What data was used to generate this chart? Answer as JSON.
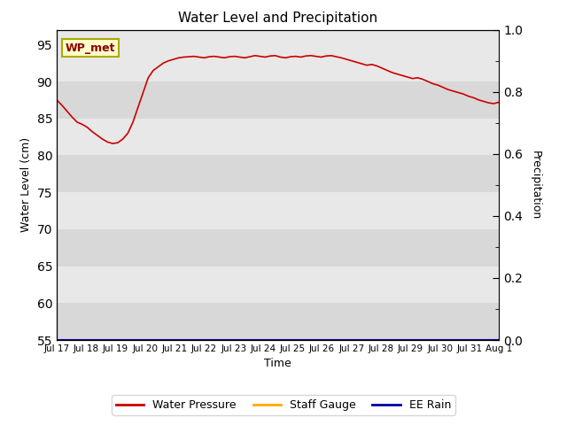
{
  "title": "Water Level and Precipitation",
  "xlabel": "Time",
  "ylabel_left": "Water Level (cm)",
  "ylabel_right": "Precipitation",
  "ylim_left": [
    55,
    97
  ],
  "ylim_right": [
    0,
    1.0
  ],
  "yticks_left": [
    55,
    60,
    65,
    70,
    75,
    80,
    85,
    90,
    95
  ],
  "yticks_right": [
    0.0,
    0.2,
    0.4,
    0.6,
    0.8,
    1.0
  ],
  "bg_color_dark": "#d8d8d8",
  "bg_color_light": "#e8e8e8",
  "line_color_wp": "#cc0000",
  "line_color_sg": "#ffaa00",
  "line_color_rain": "#0000aa",
  "legend_labels": [
    "Water Pressure",
    "Staff Gauge",
    "EE Rain"
  ],
  "annotation_text": "WP_met",
  "annotation_bbox_facecolor": "#ffffcc",
  "annotation_bbox_edgecolor": "#aaaa00",
  "water_level": [
    87.5,
    86.8,
    86.0,
    85.2,
    84.5,
    84.2,
    83.8,
    83.2,
    82.7,
    82.2,
    81.8,
    81.6,
    81.7,
    82.2,
    83.0,
    84.5,
    86.5,
    88.5,
    90.5,
    91.5,
    92.0,
    92.5,
    92.8,
    93.0,
    93.2,
    93.3,
    93.35,
    93.4,
    93.3,
    93.2,
    93.35,
    93.4,
    93.3,
    93.2,
    93.35,
    93.4,
    93.3,
    93.2,
    93.35,
    93.5,
    93.4,
    93.3,
    93.45,
    93.5,
    93.3,
    93.2,
    93.35,
    93.4,
    93.3,
    93.45,
    93.5,
    93.4,
    93.3,
    93.45,
    93.5,
    93.35,
    93.2,
    93.0,
    92.8,
    92.6,
    92.4,
    92.2,
    92.3,
    92.1,
    91.8,
    91.5,
    91.2,
    91.0,
    90.8,
    90.6,
    90.4,
    90.5,
    90.3,
    90.0,
    89.7,
    89.5,
    89.2,
    88.9,
    88.7,
    88.5,
    88.3,
    88.0,
    87.8,
    87.5,
    87.3,
    87.1,
    87.0,
    87.2
  ],
  "x_tick_labels": [
    "Jul 17",
    "Jul 18",
    "Jul 19",
    "Jul 20",
    "Jul 21",
    "Jul 22",
    "Jul 23",
    "Jul 24",
    "Jul 25",
    "Jul 26",
    "Jul 27",
    "Jul 28",
    "Jul 29",
    "Jul 30",
    "Jul 31",
    "Aug 1"
  ],
  "n_points": 88
}
